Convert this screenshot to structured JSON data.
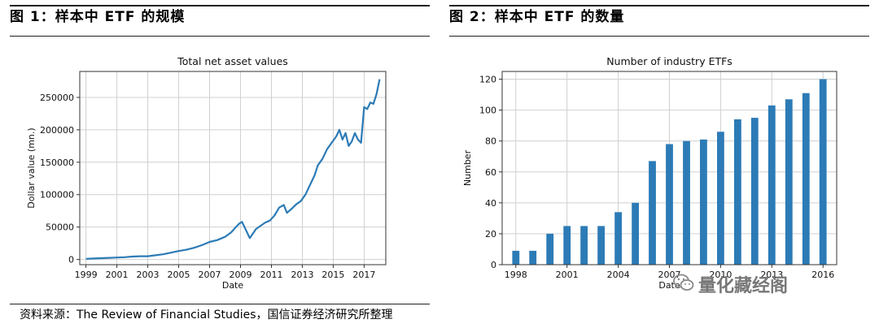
{
  "figures": [
    {
      "title": "图 1：样本中 ETF 的规模",
      "source": "资料来源：The Review of Financial Studies，国信证券经济研究所整理"
    },
    {
      "title": "图 2：样本中 ETF 的数量",
      "source": "资料来源：The Review of Financial Studies，国信证券经济研究所整理"
    }
  ],
  "watermark": {
    "text": "量化藏经阁",
    "icon": "wechat-icon"
  },
  "chart_data": [
    {
      "type": "line",
      "title": "Total net asset values",
      "xlabel": "Date",
      "ylabel": "Dollar value (mn.)",
      "xlim": [
        1998.6,
        2018.4
      ],
      "ylim": [
        -8000,
        290000
      ],
      "xticks": [
        "1999",
        "2001",
        "2003",
        "2005",
        "2007",
        "2009",
        "2011",
        "2013",
        "2015",
        "2017"
      ],
      "yticks": [
        0,
        50000,
        100000,
        150000,
        200000,
        250000
      ],
      "grid": true,
      "color": "#2c7bb6",
      "series": [
        {
          "x": [
            1999.0,
            1999.5,
            2000.0,
            2000.5,
            2001.0,
            2001.5,
            2002.0,
            2002.5,
            2003.0,
            2003.5,
            2004.0,
            2004.5,
            2005.0,
            2005.5,
            2006.0,
            2006.5,
            2007.0,
            2007.5,
            2008.0,
            2008.4,
            2008.7,
            2008.9,
            2009.1,
            2009.3,
            2009.6,
            2010.0,
            2010.3,
            2010.6,
            2010.9,
            2011.2,
            2011.5,
            2011.8,
            2012.0,
            2012.3,
            2012.6,
            2012.9,
            2013.2,
            2013.5,
            2013.8,
            2014.0,
            2014.3,
            2014.6,
            2014.9,
            2015.2,
            2015.4,
            2015.6,
            2015.8,
            2016.0,
            2016.2,
            2016.4,
            2016.6,
            2016.8,
            2017.0,
            2017.2,
            2017.4,
            2017.6,
            2017.8,
            2018.0
          ],
          "y": [
            1000,
            1500,
            2000,
            2500,
            3000,
            3500,
            4500,
            5000,
            5000,
            6500,
            8000,
            10500,
            13000,
            15000,
            18000,
            22000,
            27000,
            30000,
            35000,
            42000,
            50000,
            55000,
            58000,
            48000,
            33000,
            47000,
            52000,
            57000,
            60000,
            68000,
            80000,
            84000,
            72000,
            78000,
            85000,
            90000,
            100000,
            115000,
            130000,
            145000,
            155000,
            170000,
            180000,
            190000,
            200000,
            185000,
            195000,
            175000,
            182000,
            195000,
            185000,
            180000,
            235000,
            232000,
            242000,
            240000,
            255000,
            278000
          ]
        }
      ]
    },
    {
      "type": "bar",
      "title": "Number of industry ETFs",
      "xlabel": "Date",
      "ylabel": "Number",
      "xlim": [
        1997.2,
        2016.8
      ],
      "ylim": [
        0,
        125
      ],
      "xticks": [
        "1998",
        "2001",
        "2004",
        "2007",
        "2010",
        "2013",
        "2016"
      ],
      "yticks": [
        0,
        20,
        40,
        60,
        80,
        100,
        120
      ],
      "grid": true,
      "color": "#2c7bb6",
      "categories": [
        "1998",
        "1999",
        "2000",
        "2001",
        "2002",
        "2003",
        "2004",
        "2005",
        "2006",
        "2007",
        "2008",
        "2009",
        "2010",
        "2011",
        "2012",
        "2013",
        "2014",
        "2015",
        "2016"
      ],
      "values": [
        9,
        9,
        20,
        25,
        25,
        25,
        34,
        40,
        67,
        78,
        80,
        81,
        86,
        94,
        95,
        103,
        107,
        111,
        120
      ]
    }
  ]
}
